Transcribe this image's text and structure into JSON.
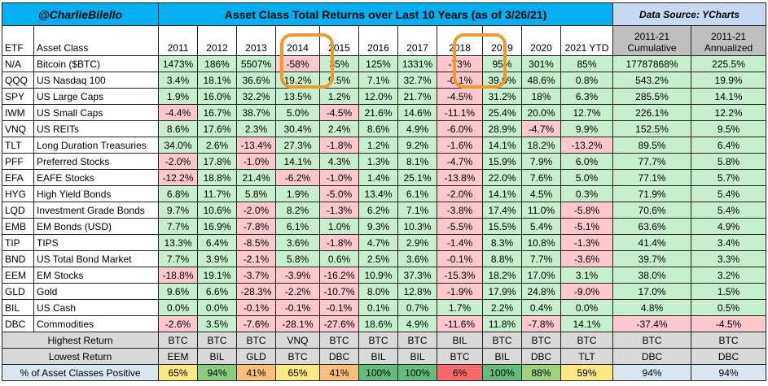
{
  "header": {
    "handle": "@CharlieBilello",
    "title": "Asset Class Total Returns over Last 10 Years (as of 3/26/21)",
    "source": "Data Source: YCharts"
  },
  "columns": {
    "etf": "ETF",
    "asset": "Asset Class",
    "years": [
      "2011",
      "2012",
      "2013",
      "2014",
      "2015",
      "2016",
      "2017",
      "2018",
      "2019",
      "2020",
      "2021 YTD"
    ],
    "cum_line1": "2011-21",
    "cum_line2": "Cumulative",
    "ann_line1": "2011-21",
    "ann_line2": "Annualized"
  },
  "chart_data": {
    "type": "table",
    "title": "Asset Class Total Returns over Last 10 Years (as of 3/26/21)",
    "rows": [
      {
        "etf": "N/A",
        "name": "Bitcoin ($BTC)",
        "values": [
          "1473%",
          "186%",
          "5507%",
          "-58%",
          "35%",
          "125%",
          "1331%",
          "-73%",
          "95%",
          "301%",
          "85%"
        ],
        "cum": "17787868%",
        "ann": "225.5%"
      },
      {
        "etf": "QQQ",
        "name": "US Nasdaq 100",
        "values": [
          "3.4%",
          "18.1%",
          "36.6%",
          "19.2%",
          "9.5%",
          "7.1%",
          "32.7%",
          "-0.1%",
          "39.0%",
          "48.6%",
          "0.8%"
        ],
        "cum": "543.2%",
        "ann": "19.9%"
      },
      {
        "etf": "SPY",
        "name": "US Large Caps",
        "values": [
          "1.9%",
          "16.0%",
          "32.2%",
          "13.5%",
          "1.2%",
          "12.0%",
          "21.7%",
          "-4.5%",
          "31.2%",
          "18%",
          "6.3%"
        ],
        "cum": "285.5%",
        "ann": "14.1%"
      },
      {
        "etf": "IWM",
        "name": "US Small Caps",
        "values": [
          "-4.4%",
          "16.7%",
          "38.7%",
          "5.0%",
          "-4.5%",
          "21.6%",
          "14.6%",
          "-11.1%",
          "25.4%",
          "20.0%",
          "12.7%"
        ],
        "cum": "226.1%",
        "ann": "12.2%"
      },
      {
        "etf": "VNQ",
        "name": "US REITs",
        "values": [
          "8.6%",
          "17.6%",
          "2.3%",
          "30.4%",
          "2.4%",
          "8.6%",
          "4.9%",
          "-6.0%",
          "28.9%",
          "-4.7%",
          "9.9%"
        ],
        "cum": "152.5%",
        "ann": "9.5%"
      },
      {
        "etf": "TLT",
        "name": "Long Duration Treasuries",
        "values": [
          "34.0%",
          "2.6%",
          "-13.4%",
          "27.3%",
          "-1.8%",
          "1.2%",
          "9.2%",
          "-1.6%",
          "14.1%",
          "18.2%",
          "-13.2%"
        ],
        "cum": "89.5%",
        "ann": "6.4%"
      },
      {
        "etf": "PFF",
        "name": "Preferred Stocks",
        "values": [
          "-2.0%",
          "17.8%",
          "-1.0%",
          "14.1%",
          "4.3%",
          "1.3%",
          "8.1%",
          "-4.7%",
          "15.9%",
          "7.9%",
          "6.0%"
        ],
        "cum": "77.7%",
        "ann": "5.8%"
      },
      {
        "etf": "EFA",
        "name": "EAFE Stocks",
        "values": [
          "-12.2%",
          "18.8%",
          "21.4%",
          "-6.2%",
          "-1.0%",
          "1.4%",
          "25.1%",
          "-13.8%",
          "22.0%",
          "7.6%",
          "5.0%"
        ],
        "cum": "77.1%",
        "ann": "5.7%"
      },
      {
        "etf": "HYG",
        "name": "High Yield Bonds",
        "values": [
          "6.8%",
          "11.7%",
          "5.8%",
          "1.9%",
          "-5.0%",
          "13.4%",
          "6.1%",
          "-2.0%",
          "14.1%",
          "4.5%",
          "0.3%"
        ],
        "cum": "71.9%",
        "ann": "5.4%"
      },
      {
        "etf": "LQD",
        "name": "Investment Grade Bonds",
        "values": [
          "9.7%",
          "10.6%",
          "-2.0%",
          "8.2%",
          "-1.3%",
          "6.2%",
          "7.1%",
          "-3.8%",
          "17.4%",
          "11.0%",
          "-5.8%"
        ],
        "cum": "70.6%",
        "ann": "5.4%"
      },
      {
        "etf": "EMB",
        "name": "EM Bonds (USD)",
        "values": [
          "7.7%",
          "16.9%",
          "-7.8%",
          "6.1%",
          "1.0%",
          "9.3%",
          "10.3%",
          "-5.5%",
          "15.5%",
          "5.4%",
          "-5.1%"
        ],
        "cum": "63.6%",
        "ann": "4.9%"
      },
      {
        "etf": "TIP",
        "name": "TIPS",
        "values": [
          "13.3%",
          "6.4%",
          "-8.5%",
          "3.6%",
          "-1.8%",
          "4.7%",
          "2.9%",
          "-1.4%",
          "8.3%",
          "10.8%",
          "-1.3%"
        ],
        "cum": "41.4%",
        "ann": "3.4%"
      },
      {
        "etf": "BND",
        "name": "US Total Bond Market",
        "values": [
          "7.7%",
          "3.9%",
          "-2.1%",
          "5.8%",
          "0.6%",
          "2.5%",
          "3.6%",
          "-0.1%",
          "8.8%",
          "7.7%",
          "-3.6%"
        ],
        "cum": "39.7%",
        "ann": "3.3%"
      },
      {
        "etf": "EEM",
        "name": "EM Stocks",
        "values": [
          "-18.8%",
          "19.1%",
          "-3.7%",
          "-3.9%",
          "-16.2%",
          "10.9%",
          "37.3%",
          "-15.3%",
          "18.2%",
          "17.0%",
          "3.1%"
        ],
        "cum": "38.0%",
        "ann": "3.2%"
      },
      {
        "etf": "GLD",
        "name": "Gold",
        "values": [
          "9.6%",
          "6.6%",
          "-28.3%",
          "-2.2%",
          "-10.7%",
          "8.0%",
          "12.8%",
          "-1.9%",
          "17.9%",
          "24.8%",
          "-9.0%"
        ],
        "cum": "17.0%",
        "ann": "1.5%"
      },
      {
        "etf": "BIL",
        "name": "US Cash",
        "values": [
          "0.0%",
          "0.0%",
          "-0.1%",
          "-0.1%",
          "-0.1%",
          "0.1%",
          "0.7%",
          "1.7%",
          "2.2%",
          "0.4%",
          "0.0%"
        ],
        "cum": "4.8%",
        "ann": "0.5%"
      },
      {
        "etf": "DBC",
        "name": "Commodities",
        "values": [
          "-2.6%",
          "3.5%",
          "-7.6%",
          "-28.1%",
          "-27.6%",
          "18.6%",
          "4.9%",
          "-11.6%",
          "11.8%",
          "-7.8%",
          "14.1%"
        ],
        "cum": "-37.4%",
        "ann": "-4.5%"
      }
    ],
    "highest": {
      "label": "Highest Return",
      "values": [
        "BTC",
        "BTC",
        "BTC",
        "VNQ",
        "BTC",
        "BTC",
        "BTC",
        "BIL",
        "BTC",
        "BTC",
        "BTC",
        "BTC",
        "BTC"
      ]
    },
    "lowest": {
      "label": "Lowest Return",
      "values": [
        "EEM",
        "BIL",
        "GLD",
        "BTC",
        "DBC",
        "BIL",
        "BIL",
        "BTC",
        "BIL",
        "DBC",
        "TLT",
        "DBC",
        "DBC"
      ]
    },
    "positive": {
      "label": "% of Asset Classes Positive",
      "values": [
        "65%",
        "94%",
        "41%",
        "65%",
        "41%",
        "100%",
        "100%",
        "6%",
        "100%",
        "88%",
        "59%",
        "94%",
        "94%"
      ]
    }
  },
  "colors": {
    "header_blue": "#00b0f0",
    "positive": "#c6efce",
    "negative": "#ffc7ce",
    "annotation_circle": "#f39a26",
    "pct_scale": {
      "6%": "#f8696b",
      "41%": "#fcbf7b",
      "59%": "#ffe884",
      "65%": "#ffe884",
      "88%": "#9dd27f",
      "94%": "#8ccc7e",
      "100%": "#63be7b"
    }
  }
}
